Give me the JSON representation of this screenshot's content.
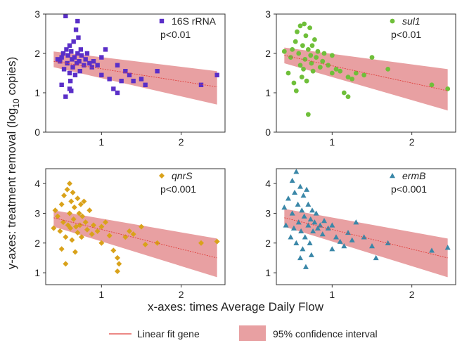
{
  "figure": {
    "ylabel": "y-axes: treatment removal  (log10 copies)",
    "ylabel_pre": "y-axes: treatment removal  (log",
    "ylabel_sub": "10",
    "ylabel_post": " copies)",
    "xlabel": "x-axes: times Average Daily Flow",
    "legend": {
      "fit_label": "Linear fit gene",
      "ci_label": "95% confidence interval"
    },
    "colors": {
      "fit_line": "#e0403c",
      "ci_band": "#e8a0a2",
      "frame": "#333333"
    }
  },
  "chart_data": [
    {
      "type": "scatter",
      "name": "16S rRNA",
      "italic": false,
      "pvalue": "p<0.01",
      "color": "#5a2fc8",
      "marker": "square",
      "xticks": [
        1,
        2
      ],
      "yticks": [
        0,
        1,
        2,
        3
      ],
      "xlim": [
        0.3,
        2.55
      ],
      "ylim": [
        0,
        3
      ],
      "fit": {
        "x": [
          0.4,
          2.45
        ],
        "y": [
          1.8,
          1.15
        ]
      },
      "ci": {
        "x": [
          0.4,
          2.45
        ],
        "upper": [
          2.05,
          1.55
        ],
        "lower": [
          1.65,
          0.7
        ]
      },
      "points": [
        [
          0.45,
          1.85
        ],
        [
          0.48,
          1.8
        ],
        [
          0.5,
          1.9
        ],
        [
          0.52,
          2.0
        ],
        [
          0.53,
          1.6
        ],
        [
          0.55,
          2.95
        ],
        [
          0.56,
          2.1
        ],
        [
          0.57,
          1.75
        ],
        [
          0.58,
          1.95
        ],
        [
          0.6,
          2.2
        ],
        [
          0.6,
          1.5
        ],
        [
          0.61,
          1.3
        ],
        [
          0.62,
          2.05
        ],
        [
          0.63,
          1.85
        ],
        [
          0.64,
          1.65
        ],
        [
          0.65,
          2.3
        ],
        [
          0.66,
          1.9
        ],
        [
          0.67,
          1.45
        ],
        [
          0.68,
          2.6
        ],
        [
          0.69,
          1.75
        ],
        [
          0.7,
          2.0
        ],
        [
          0.71,
          2.4
        ],
        [
          0.72,
          1.8
        ],
        [
          0.73,
          1.55
        ],
        [
          0.74,
          2.1
        ],
        [
          0.75,
          1.95
        ],
        [
          0.5,
          1.2
        ],
        [
          0.55,
          0.9
        ],
        [
          0.6,
          1.1
        ],
        [
          0.62,
          1.05
        ],
        [
          0.7,
          2.82
        ],
        [
          0.78,
          1.7
        ],
        [
          0.8,
          1.85
        ],
        [
          0.82,
          2.0
        ],
        [
          0.85,
          1.75
        ],
        [
          0.88,
          1.65
        ],
        [
          0.9,
          1.8
        ],
        [
          0.95,
          1.7
        ],
        [
          1.0,
          1.45
        ],
        [
          1.0,
          1.9
        ],
        [
          1.05,
          2.1
        ],
        [
          1.1,
          1.35
        ],
        [
          1.15,
          1.1
        ],
        [
          1.2,
          1.7
        ],
        [
          1.2,
          1.0
        ],
        [
          1.25,
          1.3
        ],
        [
          1.3,
          1.55
        ],
        [
          1.35,
          1.45
        ],
        [
          1.4,
          1.3
        ],
        [
          1.5,
          1.35
        ],
        [
          1.55,
          1.2
        ],
        [
          1.7,
          1.55
        ],
        [
          2.25,
          1.2
        ],
        [
          2.45,
          1.45
        ]
      ]
    },
    {
      "type": "scatter",
      "name": "sul1",
      "italic": true,
      "pvalue": "p<0.01",
      "color": "#6fbf3a",
      "marker": "circle",
      "xticks": [
        1,
        2
      ],
      "yticks": [
        0,
        1,
        2,
        3
      ],
      "xlim": [
        0.3,
        2.55
      ],
      "ylim": [
        0,
        3
      ],
      "fit": {
        "x": [
          0.4,
          2.45
        ],
        "y": [
          1.95,
          1.05
        ]
      },
      "ci": {
        "x": [
          0.4,
          2.45
        ],
        "upper": [
          2.15,
          1.6
        ],
        "lower": [
          1.75,
          0.55
        ]
      },
      "points": [
        [
          0.4,
          2.05
        ],
        [
          0.45,
          1.5
        ],
        [
          0.48,
          1.9
        ],
        [
          0.5,
          2.1
        ],
        [
          0.52,
          1.25
        ],
        [
          0.54,
          2.3
        ],
        [
          0.55,
          1.05
        ],
        [
          0.56,
          2.55
        ],
        [
          0.58,
          2.0
        ],
        [
          0.6,
          1.7
        ],
        [
          0.6,
          2.7
        ],
        [
          0.62,
          1.4
        ],
        [
          0.63,
          2.2
        ],
        [
          0.64,
          1.6
        ],
        [
          0.65,
          2.75
        ],
        [
          0.66,
          1.85
        ],
        [
          0.67,
          2.45
        ],
        [
          0.68,
          1.3
        ],
        [
          0.7,
          2.1
        ],
        [
          0.7,
          0.45
        ],
        [
          0.72,
          2.65
        ],
        [
          0.73,
          1.95
        ],
        [
          0.74,
          1.75
        ],
        [
          0.75,
          2.2
        ],
        [
          0.76,
          1.55
        ],
        [
          0.78,
          2.35
        ],
        [
          0.8,
          1.9
        ],
        [
          0.82,
          2.05
        ],
        [
          0.85,
          1.65
        ],
        [
          0.88,
          1.8
        ],
        [
          0.9,
          2.0
        ],
        [
          0.95,
          1.7
        ],
        [
          1.0,
          1.5
        ],
        [
          1.0,
          1.95
        ],
        [
          1.05,
          1.6
        ],
        [
          1.1,
          1.55
        ],
        [
          1.15,
          1.0
        ],
        [
          1.2,
          0.9
        ],
        [
          1.2,
          1.4
        ],
        [
          1.25,
          1.35
        ],
        [
          1.3,
          1.5
        ],
        [
          1.4,
          1.45
        ],
        [
          1.5,
          1.9
        ],
        [
          1.7,
          1.6
        ],
        [
          2.25,
          1.2
        ],
        [
          2.45,
          1.1
        ]
      ]
    },
    {
      "type": "scatter",
      "name": "qnrS",
      "italic": true,
      "pvalue": "p<0.001",
      "color": "#d9a21a",
      "marker": "diamond",
      "xticks": [
        1,
        2
      ],
      "yticks": [
        1,
        2,
        3,
        4
      ],
      "xlim": [
        0.3,
        2.55
      ],
      "ylim": [
        0.6,
        4.5
      ],
      "fit": {
        "x": [
          0.4,
          2.45
        ],
        "y": [
          2.85,
          1.5
        ]
      },
      "ci": {
        "x": [
          0.4,
          2.45
        ],
        "upper": [
          3.1,
          2.15
        ],
        "lower": [
          2.55,
          0.85
        ]
      },
      "points": [
        [
          0.4,
          2.5
        ],
        [
          0.42,
          3.1
        ],
        [
          0.45,
          2.9
        ],
        [
          0.48,
          2.4
        ],
        [
          0.5,
          3.3
        ],
        [
          0.5,
          1.8
        ],
        [
          0.52,
          2.7
        ],
        [
          0.53,
          3.6
        ],
        [
          0.55,
          2.2
        ],
        [
          0.55,
          1.3
        ],
        [
          0.57,
          3.8
        ],
        [
          0.58,
          2.6
        ],
        [
          0.6,
          4.0
        ],
        [
          0.6,
          3.0
        ],
        [
          0.61,
          2.5
        ],
        [
          0.62,
          3.4
        ],
        [
          0.63,
          2.1
        ],
        [
          0.64,
          3.7
        ],
        [
          0.65,
          2.8
        ],
        [
          0.66,
          3.2
        ],
        [
          0.67,
          1.7
        ],
        [
          0.68,
          2.55
        ],
        [
          0.7,
          3.5
        ],
        [
          0.7,
          2.35
        ],
        [
          0.72,
          3.0
        ],
        [
          0.73,
          2.6
        ],
        [
          0.74,
          3.3
        ],
        [
          0.75,
          2.2
        ],
        [
          0.76,
          2.9
        ],
        [
          0.78,
          3.4
        ],
        [
          0.8,
          2.7
        ],
        [
          0.82,
          2.45
        ],
        [
          0.85,
          3.1
        ],
        [
          0.88,
          2.3
        ],
        [
          0.9,
          2.6
        ],
        [
          0.95,
          2.4
        ],
        [
          1.0,
          2.55
        ],
        [
          1.0,
          2.0
        ],
        [
          1.05,
          2.7
        ],
        [
          1.1,
          2.25
        ],
        [
          1.15,
          1.75
        ],
        [
          1.2,
          1.5
        ],
        [
          1.2,
          1.05
        ],
        [
          1.22,
          1.3
        ],
        [
          1.3,
          2.2
        ],
        [
          1.35,
          2.4
        ],
        [
          1.4,
          2.3
        ],
        [
          1.5,
          2.55
        ],
        [
          1.55,
          1.95
        ],
        [
          1.7,
          2.0
        ],
        [
          2.25,
          2.0
        ],
        [
          2.45,
          2.05
        ]
      ]
    },
    {
      "type": "scatter",
      "name": "ermB",
      "italic": true,
      "pvalue": "p<0.001",
      "color": "#3a87a8",
      "marker": "triangle",
      "xticks": [
        1,
        2
      ],
      "yticks": [
        1,
        2,
        3,
        4
      ],
      "xlim": [
        0.3,
        2.55
      ],
      "ylim": [
        0.6,
        4.5
      ],
      "fit": {
        "x": [
          0.4,
          2.45
        ],
        "y": [
          2.85,
          1.5
        ]
      },
      "ci": {
        "x": [
          0.4,
          2.45
        ],
        "upper": [
          3.15,
          2.15
        ],
        "lower": [
          2.55,
          0.85
        ]
      },
      "points": [
        [
          0.4,
          3.2
        ],
        [
          0.42,
          2.6
        ],
        [
          0.45,
          3.5
        ],
        [
          0.48,
          2.2
        ],
        [
          0.5,
          3.0
        ],
        [
          0.5,
          4.1
        ],
        [
          0.52,
          2.5
        ],
        [
          0.53,
          3.7
        ],
        [
          0.55,
          2.0
        ],
        [
          0.55,
          4.4
        ],
        [
          0.57,
          3.3
        ],
        [
          0.58,
          2.7
        ],
        [
          0.6,
          3.9
        ],
        [
          0.6,
          1.5
        ],
        [
          0.61,
          2.4
        ],
        [
          0.62,
          3.1
        ],
        [
          0.63,
          1.8
        ],
        [
          0.64,
          3.6
        ],
        [
          0.65,
          2.9
        ],
        [
          0.66,
          2.2
        ],
        [
          0.67,
          1.2
        ],
        [
          0.68,
          3.8
        ],
        [
          0.7,
          2.6
        ],
        [
          0.7,
          3.3
        ],
        [
          0.72,
          2.0
        ],
        [
          0.73,
          2.8
        ],
        [
          0.74,
          1.6
        ],
        [
          0.75,
          3.1
        ],
        [
          0.76,
          2.4
        ],
        [
          0.78,
          2.7
        ],
        [
          0.8,
          3.0
        ],
        [
          0.82,
          2.5
        ],
        [
          0.85,
          2.6
        ],
        [
          0.88,
          2.3
        ],
        [
          0.9,
          2.75
        ],
        [
          0.95,
          2.5
        ],
        [
          1.0,
          2.6
        ],
        [
          1.0,
          1.8
        ],
        [
          1.05,
          2.2
        ],
        [
          1.1,
          2.05
        ],
        [
          1.15,
          1.9
        ],
        [
          1.2,
          2.35
        ],
        [
          1.25,
          2.1
        ],
        [
          1.3,
          2.7
        ],
        [
          1.4,
          2.2
        ],
        [
          1.5,
          1.9
        ],
        [
          1.55,
          1.5
        ],
        [
          1.7,
          2.0
        ],
        [
          2.25,
          1.75
        ],
        [
          2.45,
          1.85
        ]
      ]
    }
  ]
}
